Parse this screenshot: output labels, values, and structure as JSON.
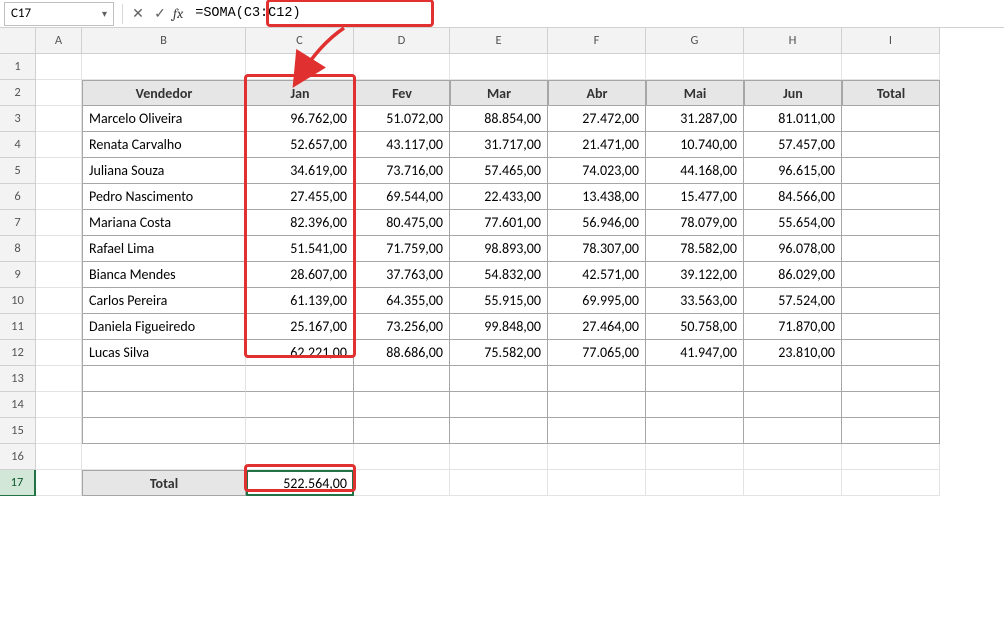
{
  "formula_bar": {
    "name_box": "C17",
    "formula": "=SOMA(C3:C12)"
  },
  "columns": [
    "",
    "A",
    "B",
    "C",
    "D",
    "E",
    "F",
    "G",
    "H",
    "I"
  ],
  "row_labels": [
    "1",
    "2",
    "3",
    "4",
    "5",
    "6",
    "7",
    "8",
    "9",
    "10",
    "11",
    "12",
    "13",
    "14",
    "15",
    "16",
    "17"
  ],
  "table": {
    "headers": [
      "Vendedor",
      "Jan",
      "Fev",
      "Mar",
      "Abr",
      "Mai",
      "Jun",
      "Total"
    ],
    "rows": [
      {
        "name": "Marcelo Oliveira",
        "vals": [
          "96.762,00",
          "51.072,00",
          "88.854,00",
          "27.472,00",
          "31.287,00",
          "81.011,00"
        ]
      },
      {
        "name": "Renata Carvalho",
        "vals": [
          "52.657,00",
          "43.117,00",
          "31.717,00",
          "21.471,00",
          "10.740,00",
          "57.457,00"
        ]
      },
      {
        "name": "Juliana Souza",
        "vals": [
          "34.619,00",
          "73.716,00",
          "57.465,00",
          "74.023,00",
          "44.168,00",
          "96.615,00"
        ]
      },
      {
        "name": "Pedro Nascimento",
        "vals": [
          "27.455,00",
          "69.544,00",
          "22.433,00",
          "13.438,00",
          "15.477,00",
          "84.566,00"
        ]
      },
      {
        "name": "Mariana Costa",
        "vals": [
          "82.396,00",
          "80.475,00",
          "77.601,00",
          "56.946,00",
          "78.079,00",
          "55.654,00"
        ]
      },
      {
        "name": "Rafael Lima",
        "vals": [
          "51.541,00",
          "71.759,00",
          "98.893,00",
          "78.307,00",
          "78.582,00",
          "96.078,00"
        ]
      },
      {
        "name": "Bianca Mendes",
        "vals": [
          "28.607,00",
          "37.763,00",
          "54.832,00",
          "42.571,00",
          "39.122,00",
          "86.029,00"
        ]
      },
      {
        "name": "Carlos Pereira",
        "vals": [
          "61.139,00",
          "64.355,00",
          "55.915,00",
          "69.995,00",
          "33.563,00",
          "57.524,00"
        ]
      },
      {
        "name": "Daniela Figueiredo",
        "vals": [
          "25.167,00",
          "73.256,00",
          "99.848,00",
          "27.464,00",
          "50.758,00",
          "71.870,00"
        ]
      },
      {
        "name": "Lucas Silva",
        "vals": [
          "62.221,00",
          "88.686,00",
          "75.582,00",
          "77.065,00",
          "41.947,00",
          "23.810,00"
        ]
      }
    ],
    "total_label": "Total",
    "total_value": "522.564,00"
  },
  "style": {
    "highlight_color": "#e03030",
    "header_bg": "#e7e6e6",
    "border_color": "#a6a6a6",
    "selection_color": "#217346"
  }
}
